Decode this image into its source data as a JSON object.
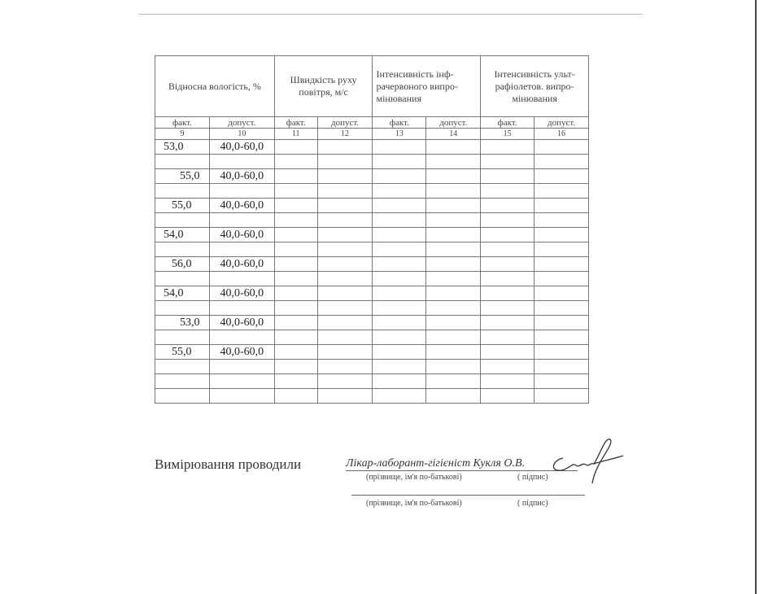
{
  "table": {
    "headers": [
      "Відносна вологість, %",
      "Швидкість руху повітря, м/с",
      "Інтенсивність інфрачервоного випромінювання",
      "Інтенсивність ультрафіолетов. випромінювання"
    ],
    "header_lines": {
      "h1": "Відносна вологість, %",
      "h2a": "Швидкість руху",
      "h2b": "повітря, м/с",
      "h3a": "Інтенсивність інф-",
      "h3b": "рачервоного випро-",
      "h3c": "мінювания",
      "h4a": "Інтенсивність ульт-",
      "h4b": "рафіолетов. випро-",
      "h4c": "мінювания"
    },
    "subheaders": [
      "факт.",
      "допуст.",
      "факт.",
      "допуст.",
      "факт.",
      "допуст.",
      "факт.",
      "допуст."
    ],
    "column_numbers": [
      "9",
      "10",
      "11",
      "12",
      "13",
      "14",
      "15",
      "16"
    ],
    "rows": [
      [
        "53,0",
        "40,0-60,0"
      ],
      [
        "",
        ""
      ],
      [
        "55,0",
        "40,0-60,0"
      ],
      [
        "",
        ""
      ],
      [
        "55,0",
        "40,0-60,0"
      ],
      [
        "",
        ""
      ],
      [
        "54,0",
        "40,0-60,0"
      ],
      [
        "",
        ""
      ],
      [
        "56,0",
        "40,0-60,0"
      ],
      [
        "",
        ""
      ],
      [
        "54,0",
        "40,0-60,0"
      ],
      [
        "",
        ""
      ],
      [
        "53,0",
        "40,0-60,0"
      ],
      [
        "",
        ""
      ],
      [
        "55,0",
        "40,0-60,0"
      ],
      [
        "",
        ""
      ],
      [
        "",
        ""
      ],
      [
        "",
        ""
      ]
    ]
  },
  "footer": {
    "measured_by": "Вимірювання проводили",
    "signer": "Лікар-лаборант-гігієніст Кукля О.В.",
    "name_caption": "(прізвище, ім'я по-батькові)",
    "signature_caption": "( підпис)"
  }
}
